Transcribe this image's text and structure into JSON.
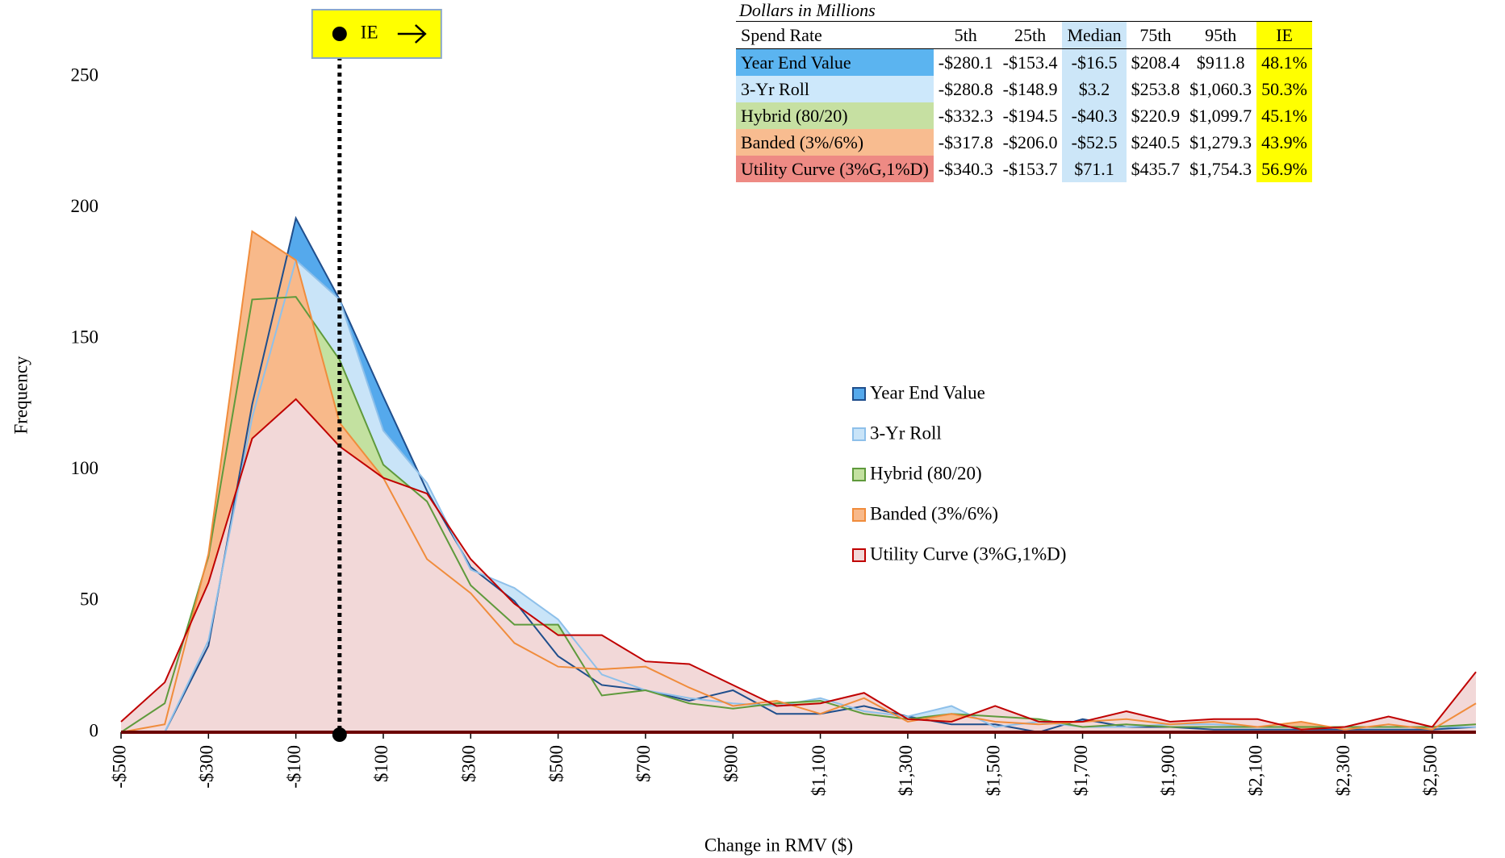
{
  "chart_data": {
    "type": "area",
    "x_label": "Change in RMV ($)",
    "y_label": "Frequency",
    "x": [
      -500,
      -400,
      -300,
      -200,
      -100,
      0,
      100,
      200,
      300,
      400,
      500,
      600,
      700,
      800,
      900,
      1000,
      1100,
      1200,
      1300,
      1400,
      1500,
      1600,
      1700,
      1800,
      1900,
      2000,
      2100,
      2200,
      2300,
      2400,
      2500,
      2600
    ],
    "xlim": [
      -500,
      2600
    ],
    "xticks": [
      {
        "value": -500,
        "label": "-$500"
      },
      {
        "value": -300,
        "label": "-$300"
      },
      {
        "value": -100,
        "label": "-$100"
      },
      {
        "value": 100,
        "label": "$100"
      },
      {
        "value": 300,
        "label": "$300"
      },
      {
        "value": 500,
        "label": "$500"
      },
      {
        "value": 700,
        "label": "$700"
      },
      {
        "value": 900,
        "label": "$900"
      },
      {
        "value": 1100,
        "label": "$1,100"
      },
      {
        "value": 1300,
        "label": "$1,300"
      },
      {
        "value": 1500,
        "label": "$1,500"
      },
      {
        "value": 1700,
        "label": "$1,700"
      },
      {
        "value": 1900,
        "label": "$1,900"
      },
      {
        "value": 2100,
        "label": "$2,100"
      },
      {
        "value": 2300,
        "label": "$2,300"
      },
      {
        "value": 2500,
        "label": "$2,500"
      }
    ],
    "ylim": [
      0,
      250
    ],
    "yticks": [
      0,
      50,
      100,
      150,
      200,
      250
    ],
    "ie_line": {
      "label": "IE",
      "x": 0
    },
    "series": [
      {
        "name": "Year End Value",
        "color": "#1f4e8c",
        "fill": "#55a9ec",
        "values": [
          0,
          0,
          33,
          125,
          196,
          165,
          128,
          92,
          63,
          50,
          29,
          18,
          16,
          12,
          16,
          7,
          7,
          10,
          6,
          3,
          3,
          0,
          5,
          2,
          2,
          1,
          1,
          1,
          1,
          1,
          1,
          2
        ]
      },
      {
        "name": "3-Yr Roll",
        "color": "#8ec0ea",
        "fill": "#c9e4f8",
        "values": [
          0,
          0,
          35,
          120,
          180,
          165,
          115,
          95,
          62,
          55,
          43,
          22,
          16,
          13,
          11,
          10,
          13,
          8,
          6,
          10,
          2,
          4,
          2,
          2,
          3,
          3,
          2,
          2,
          2,
          2,
          2,
          2
        ]
      },
      {
        "name": "Hybrid (80/20)",
        "color": "#5f9a3c",
        "fill": "#c3e1a0",
        "values": [
          0,
          11,
          67,
          165,
          166,
          142,
          102,
          88,
          56,
          41,
          41,
          14,
          16,
          11,
          9,
          11,
          12,
          7,
          5,
          7,
          6,
          5,
          2,
          3,
          2,
          2,
          2,
          2,
          2,
          2,
          2,
          3
        ]
      },
      {
        "name": "Banded (3%/6%)",
        "color": "#f08c3c",
        "fill": "#f8b98a",
        "values": [
          0,
          3,
          68,
          191,
          180,
          118,
          97,
          66,
          53,
          34,
          25,
          24,
          25,
          17,
          10,
          12,
          7,
          13,
          4,
          7,
          4,
          3,
          4,
          5,
          3,
          4,
          2,
          4,
          1,
          3,
          1,
          11
        ]
      },
      {
        "name": "Utility Curve (3%G,1%D)",
        "color": "#c00000",
        "fill": "#f2d8d8",
        "values": [
          4,
          19,
          57,
          112,
          127,
          109,
          97,
          91,
          66,
          49,
          37,
          37,
          27,
          26,
          18,
          10,
          11,
          15,
          5,
          4,
          10,
          4,
          4,
          8,
          4,
          5,
          5,
          1,
          2,
          6,
          2,
          23
        ]
      }
    ]
  },
  "table": {
    "title": "Dollars in Millions",
    "header": [
      "Spend Rate",
      "5th",
      "25th",
      "Median",
      "75th",
      "95th",
      "IE"
    ],
    "rows": [
      [
        "Year End Value",
        "-$280.1",
        "-$153.4",
        "-$16.5",
        "$208.4",
        "$911.8",
        "48.1%"
      ],
      [
        "3-Yr Roll",
        "-$280.8",
        "-$148.9",
        "$3.2",
        "$253.8",
        "$1,060.3",
        "50.3%"
      ],
      [
        "Hybrid (80/20)",
        "-$332.3",
        "-$194.5",
        "-$40.3",
        "$220.9",
        "$1,099.7",
        "45.1%"
      ],
      [
        "Banded (3%/6%)",
        "-$317.8",
        "-$206.0",
        "-$52.5",
        "$240.5",
        "$1,279.3",
        "43.9%"
      ],
      [
        "Utility Curve (3%G,1%D)",
        "-$340.3",
        "-$153.7",
        "$71.1",
        "$435.7",
        "$1,754.3",
        "56.9%"
      ]
    ]
  }
}
